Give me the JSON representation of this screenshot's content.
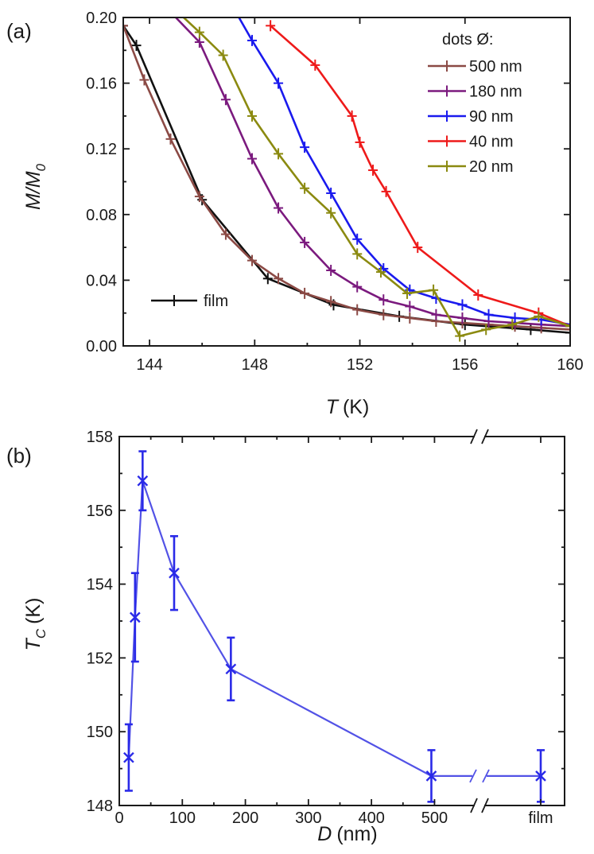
{
  "chart_data": [
    {
      "panel": "(a)",
      "type": "line",
      "title": "",
      "xlabel": {
        "var": "T",
        "unit": "(K)"
      },
      "ylabel": {
        "var": "M/M",
        "sub": "0"
      },
      "xlim": [
        143,
        160
      ],
      "ylim": [
        0.0,
        0.2
      ],
      "xticks": [
        144,
        148,
        152,
        156,
        160
      ],
      "yticks": [
        0.0,
        0.04,
        0.08,
        0.12,
        0.16,
        0.2
      ],
      "xtick_labels": [
        "144",
        "148",
        "152",
        "156",
        "160"
      ],
      "ytick_labels": [
        "0.00",
        "0.04",
        "0.08",
        "0.12",
        "0.16",
        "0.20"
      ],
      "legend_title": "dots Ø:",
      "legend_position": "top-right",
      "series": [
        {
          "name": "500 nm",
          "color": "#8b4a45",
          "x": [
            143.0,
            143.8,
            144.8,
            145.9,
            146.9,
            147.9,
            148.9,
            149.9,
            150.9,
            151.9,
            152.9,
            153.9,
            154.9,
            155.9,
            156.9,
            157.9,
            158.9,
            160.0
          ],
          "y": [
            0.195,
            0.162,
            0.126,
            0.091,
            0.068,
            0.052,
            0.041,
            0.032,
            0.027,
            0.022,
            0.019,
            0.017,
            0.015,
            0.014,
            0.013,
            0.012,
            0.011,
            0.01
          ]
        },
        {
          "name": "180 nm",
          "color": "#7b1a7e",
          "x": [
            145.0,
            145.9,
            146.9,
            147.9,
            148.9,
            149.9,
            150.9,
            151.9,
            152.9,
            153.9,
            154.9,
            155.9,
            156.9,
            157.9,
            158.9,
            160.0
          ],
          "y": [
            0.2,
            0.185,
            0.15,
            0.114,
            0.084,
            0.063,
            0.046,
            0.036,
            0.028,
            0.024,
            0.019,
            0.017,
            0.015,
            0.014,
            0.013,
            0.012
          ]
        },
        {
          "name": "90 nm",
          "color": "#1a1aee",
          "x": [
            147.4,
            147.9,
            148.9,
            149.9,
            150.9,
            151.9,
            152.9,
            153.9,
            154.9,
            155.9,
            156.9,
            157.9,
            158.9,
            160.0
          ],
          "y": [
            0.2,
            0.186,
            0.16,
            0.121,
            0.093,
            0.065,
            0.047,
            0.034,
            0.029,
            0.025,
            0.019,
            0.017,
            0.016,
            0.013
          ]
        },
        {
          "name": "40 nm",
          "color": "#ee1a1a",
          "x": [
            148.6,
            150.3,
            151.7,
            152.0,
            152.5,
            153.0,
            154.2,
            156.5,
            158.8,
            160.0
          ],
          "y": [
            0.195,
            0.171,
            0.14,
            0.124,
            0.107,
            0.094,
            0.06,
            0.031,
            0.02,
            0.012
          ]
        },
        {
          "name": "20 nm",
          "color": "#8b8a10",
          "x": [
            145.3,
            145.9,
            146.8,
            147.9,
            148.9,
            149.9,
            150.9,
            151.9,
            152.8,
            153.8,
            154.8,
            155.8,
            156.8,
            157.8,
            158.8,
            160.0
          ],
          "y": [
            0.2,
            0.191,
            0.177,
            0.14,
            0.117,
            0.096,
            0.081,
            0.056,
            0.045,
            0.032,
            0.034,
            0.006,
            0.01,
            0.013,
            0.018,
            0.012
          ]
        }
      ],
      "extra_series": [
        {
          "name": "film",
          "color": "#111111",
          "legend_position": "bottom-left",
          "x": [
            143.0,
            143.5,
            146.0,
            148.5,
            151.0,
            153.5,
            156.0,
            158.5,
            160.0
          ],
          "y": [
            0.195,
            0.183,
            0.089,
            0.041,
            0.025,
            0.018,
            0.013,
            0.01,
            0.008
          ]
        }
      ]
    },
    {
      "panel": "(b)",
      "type": "scatter",
      "title": "",
      "xlabel": {
        "var": "D",
        "unit": "(nm)"
      },
      "ylabel": {
        "var": "T",
        "sub": "C",
        "unit": "(K)"
      },
      "xlim": [
        0,
        560
      ],
      "ylim": [
        148,
        158
      ],
      "xticks": [
        0,
        100,
        200,
        300,
        400,
        500
      ],
      "xtick_labels": [
        "0",
        "100",
        "200",
        "300",
        "400",
        "500"
      ],
      "yticks": [
        148,
        150,
        152,
        154,
        156,
        158
      ],
      "ytick_labels": [
        "148",
        "150",
        "152",
        "154",
        "156",
        "158"
      ],
      "axis_break": "x between 500 and film",
      "film_label": "film",
      "series": [
        {
          "name": "dots",
          "color": "#2a2ae8",
          "x": [
            15,
            25,
            37,
            87,
            177,
            495
          ],
          "y": [
            149.3,
            153.1,
            156.8,
            154.3,
            151.7,
            148.8
          ],
          "err": [
            0.9,
            1.2,
            0.8,
            1.0,
            0.85,
            0.7
          ]
        },
        {
          "name": "film",
          "color": "#2a2ae8",
          "x": [
            "film"
          ],
          "y": [
            148.8
          ],
          "err": [
            0.7
          ]
        }
      ]
    }
  ]
}
